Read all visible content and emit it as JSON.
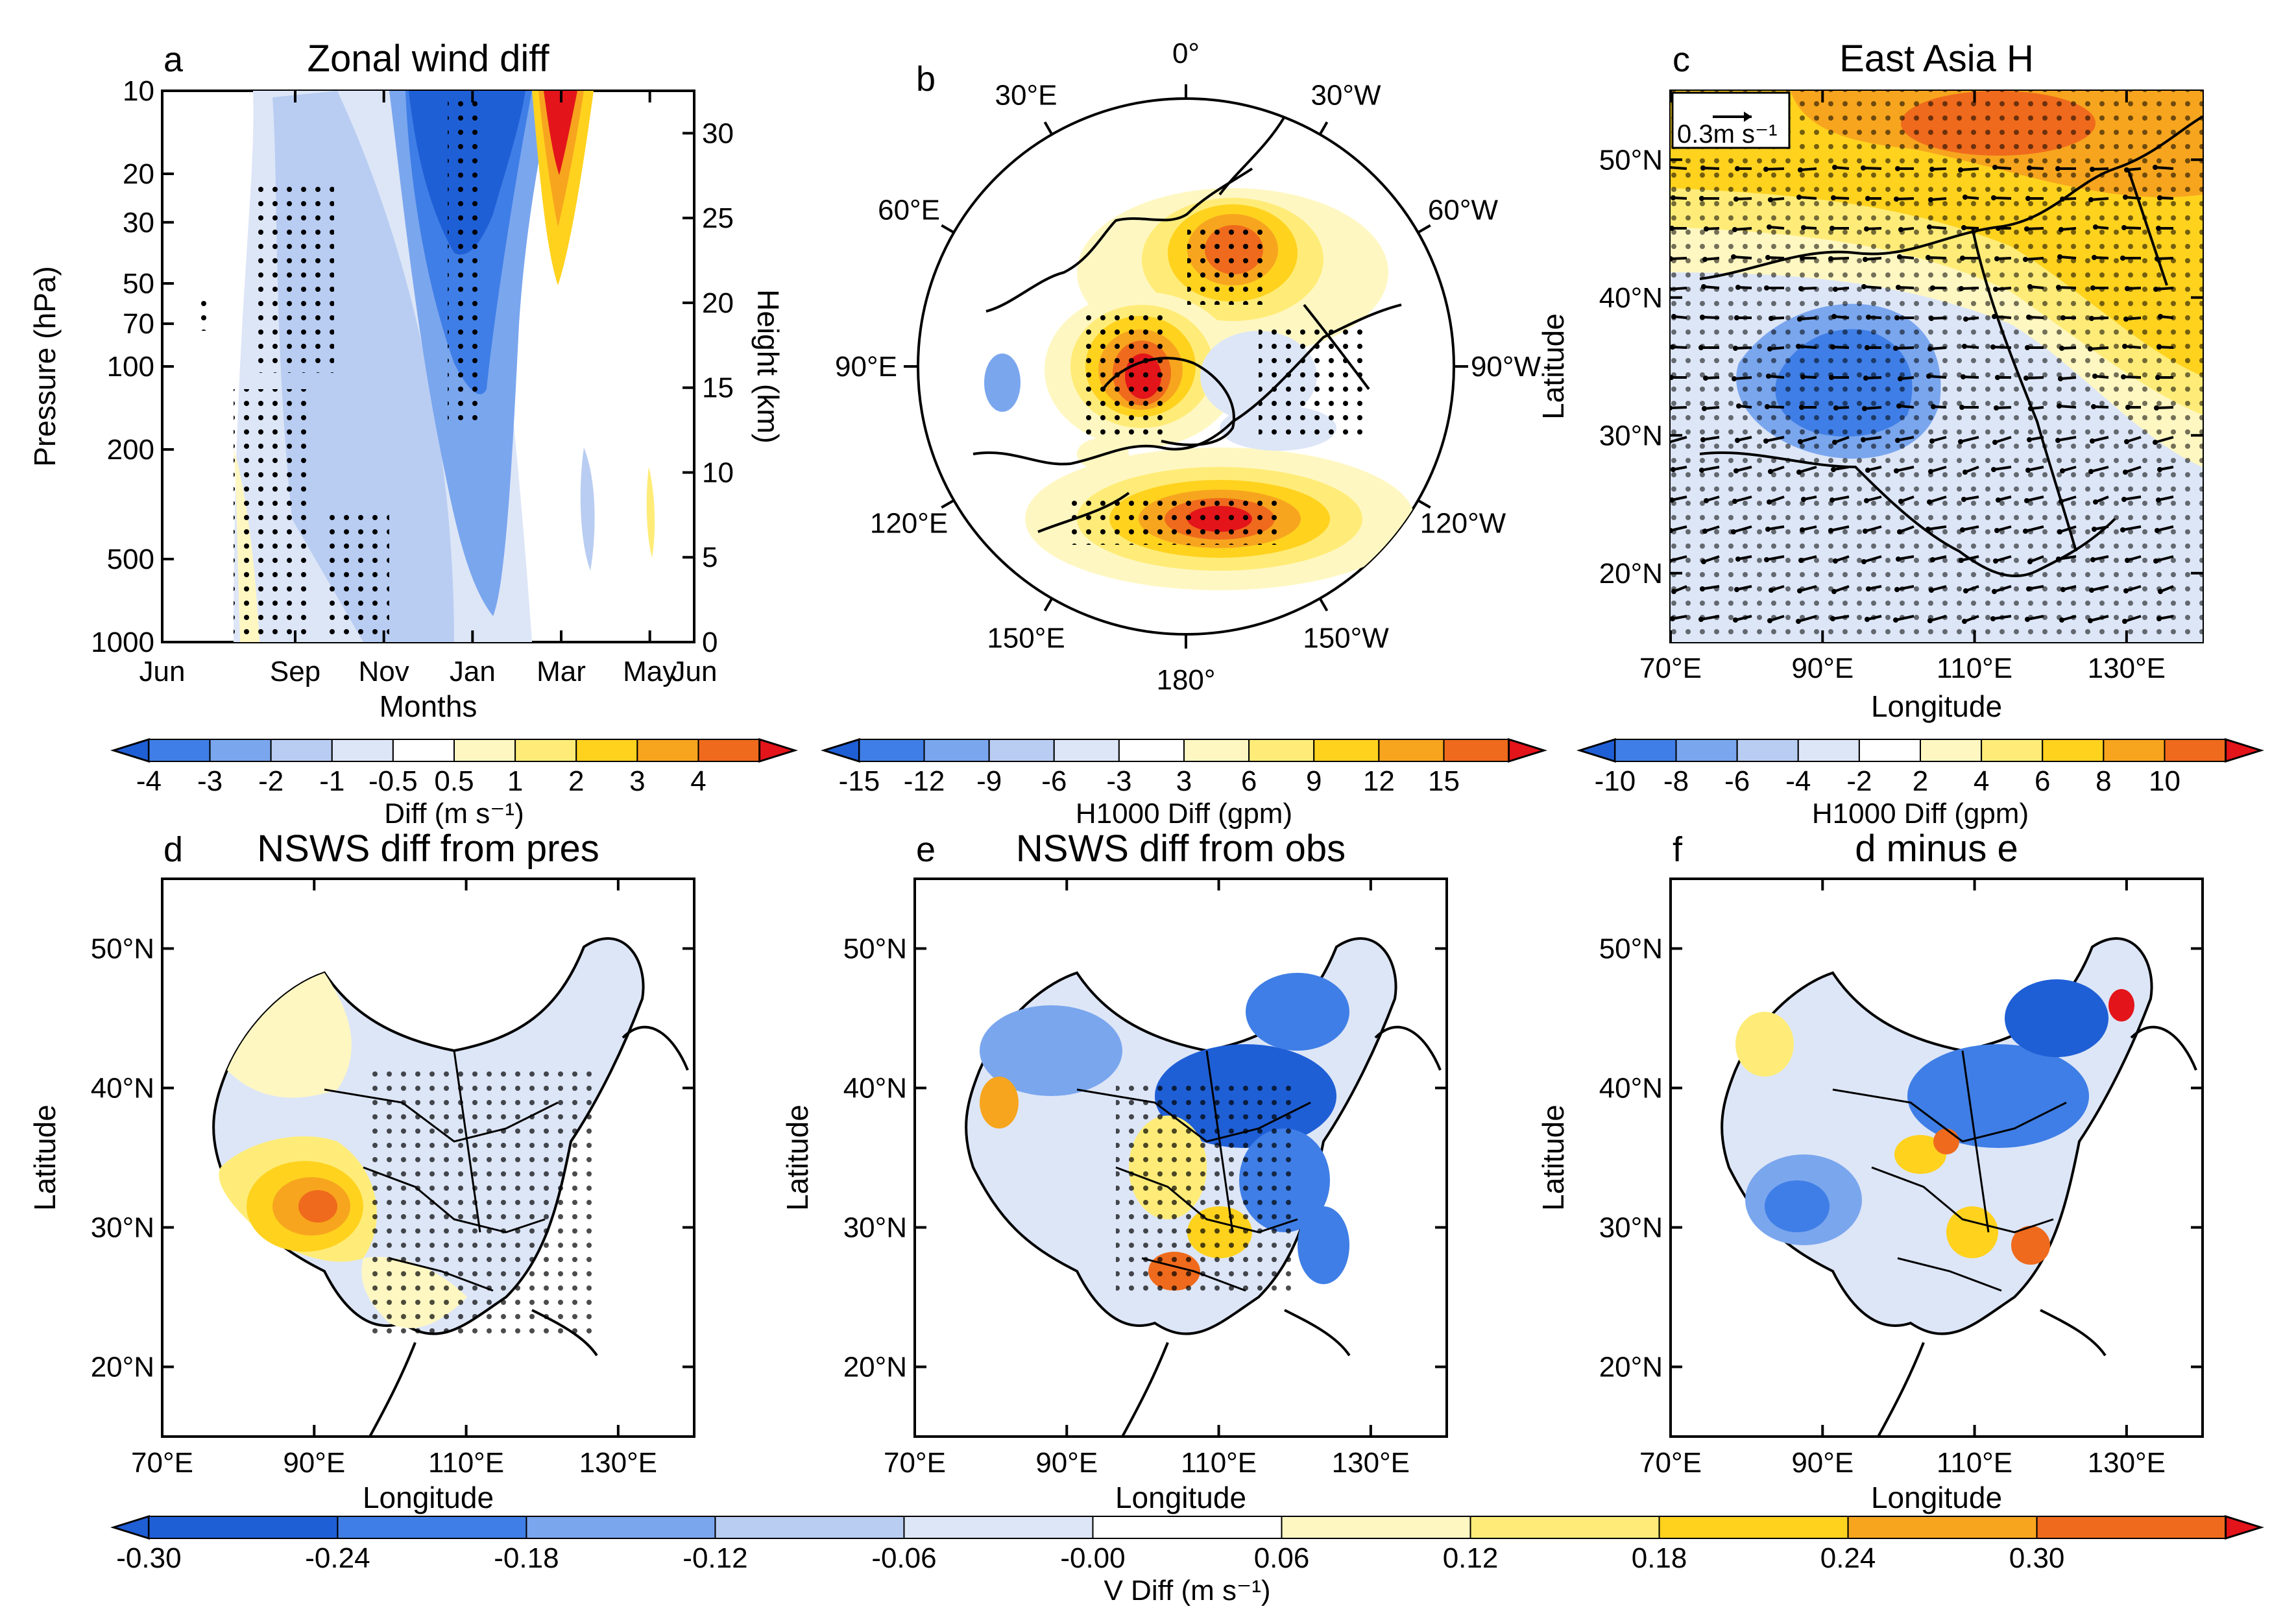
{
  "colors": {
    "neg_strong": "#1f5fd6",
    "neg_mid": "#3f7ee6",
    "neg_light": "#7aa6ee",
    "neg_pale": "#b9cdf2",
    "neg_faint": "#dde6f7",
    "pos_faint": "#fff7c2",
    "pos_light": "#ffec78",
    "pos_mid": "#ffd21e",
    "pos_orange": "#f7a51e",
    "pos_strong": "#ef6a1c",
    "pos_max": "#e3141a"
  },
  "panels": {
    "a": {
      "letter": "a",
      "title": "Zonal wind diff",
      "xlabel": "Months",
      "ylabel_left": "Pressure (hPa)",
      "ylabel_right": "Height (km)",
      "x_ticks": [
        "Jun",
        "Sep",
        "Nov",
        "Jan",
        "Mar",
        "May",
        "Jun"
      ],
      "y_ticks_left": [
        "10",
        "20",
        "30",
        "50",
        "70",
        "100",
        "200",
        "500",
        "1000"
      ],
      "y_ticks_right": [
        "30",
        "25",
        "20",
        "15",
        "10",
        "5",
        "0"
      ]
    },
    "b": {
      "letter": "b",
      "lon_labels": [
        "0°",
        "30°W",
        "60°W",
        "90°W",
        "120°W",
        "150°W",
        "180°",
        "150°E",
        "120°E",
        "90°E",
        "60°E",
        "30°E"
      ]
    },
    "c": {
      "letter": "c",
      "title": "East Asia H",
      "xlabel": "Longitude",
      "ylabel": "Latitude",
      "ref_vector": "0.3m s⁻¹",
      "x_ticks": [
        "70°E",
        "90°E",
        "110°E",
        "130°E"
      ],
      "y_ticks": [
        "50°N",
        "40°N",
        "30°N",
        "20°N"
      ]
    },
    "d": {
      "letter": "d",
      "title": "NSWS diff from pres",
      "xlabel": "Longitude",
      "ylabel": "Latitude",
      "x_ticks": [
        "70°E",
        "90°E",
        "110°E",
        "130°E"
      ],
      "y_ticks": [
        "50°N",
        "40°N",
        "30°N",
        "20°N"
      ]
    },
    "e": {
      "letter": "e",
      "title": "NSWS diff from obs",
      "xlabel": "Longitude",
      "ylabel": "Latitude",
      "x_ticks": [
        "70°E",
        "90°E",
        "110°E",
        "130°E"
      ],
      "y_ticks": [
        "50°N",
        "40°N",
        "30°N",
        "20°N"
      ]
    },
    "f": {
      "letter": "f",
      "title": "d minus e",
      "xlabel": "Longitude",
      "ylabel": "Latitude",
      "x_ticks": [
        "70°E",
        "90°E",
        "110°E",
        "130°E"
      ],
      "y_ticks": [
        "50°N",
        "40°N",
        "30°N",
        "20°N"
      ]
    }
  },
  "colorbars": {
    "a": {
      "labels": [
        "-4",
        "-3",
        "-2",
        "-1",
        "-0.5",
        "0.5",
        "1",
        "2",
        "3",
        "4"
      ],
      "title": "Diff (m s⁻¹)"
    },
    "b": {
      "labels": [
        "-15",
        "-12",
        "-9",
        "-6",
        "-3",
        "3",
        "6",
        "9",
        "12",
        "15"
      ],
      "title": "H1000 Diff (gpm)"
    },
    "c": {
      "labels": [
        "-10",
        "-8",
        "-6",
        "-4",
        "-2",
        "2",
        "4",
        "6",
        "8",
        "10"
      ],
      "title": "H1000 Diff (gpm)"
    },
    "bottom": {
      "labels": [
        "-0.30",
        "-0.24",
        "-0.18",
        "-0.12",
        "-0.06",
        "-0.00",
        "0.06",
        "0.12",
        "0.18",
        "0.24",
        "0.30"
      ],
      "title": "V Diff (m s⁻¹)"
    }
  }
}
